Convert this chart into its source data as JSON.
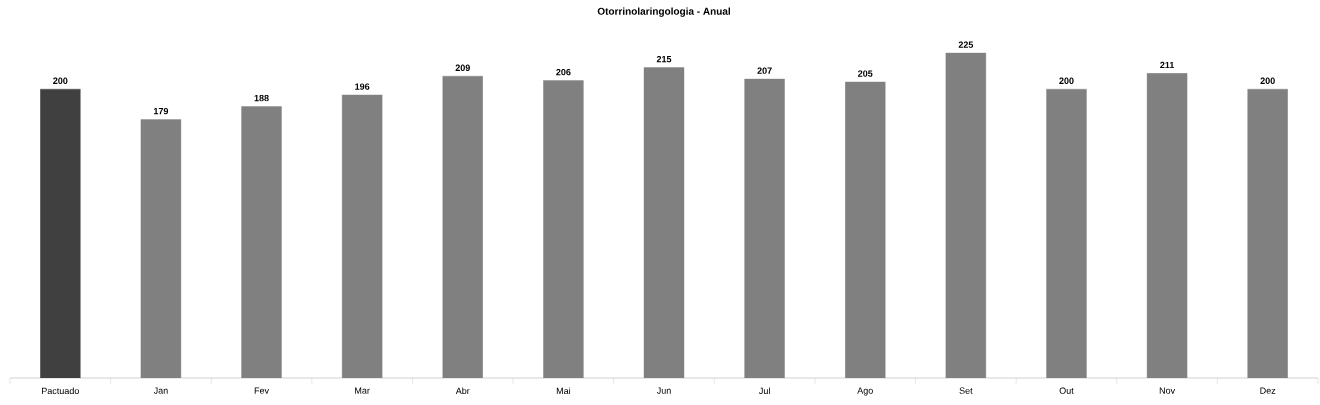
{
  "chart_data": {
    "type": "bar",
    "title": "Otorrinolaringologia - Anual",
    "categories": [
      "Pactuado",
      "Jan",
      "Fev",
      "Mar",
      "Abr",
      "Mai",
      "Jun",
      "Jul",
      "Ago",
      "Set",
      "Out",
      "Nov",
      "Dez"
    ],
    "values": [
      200,
      179,
      188,
      196,
      209,
      206,
      215,
      207,
      205,
      225,
      200,
      211,
      200
    ],
    "colors": [
      "#404040",
      "#808080",
      "#808080",
      "#808080",
      "#808080",
      "#808080",
      "#808080",
      "#808080",
      "#808080",
      "#808080",
      "#808080",
      "#808080",
      "#808080"
    ],
    "data_labels": true
  }
}
